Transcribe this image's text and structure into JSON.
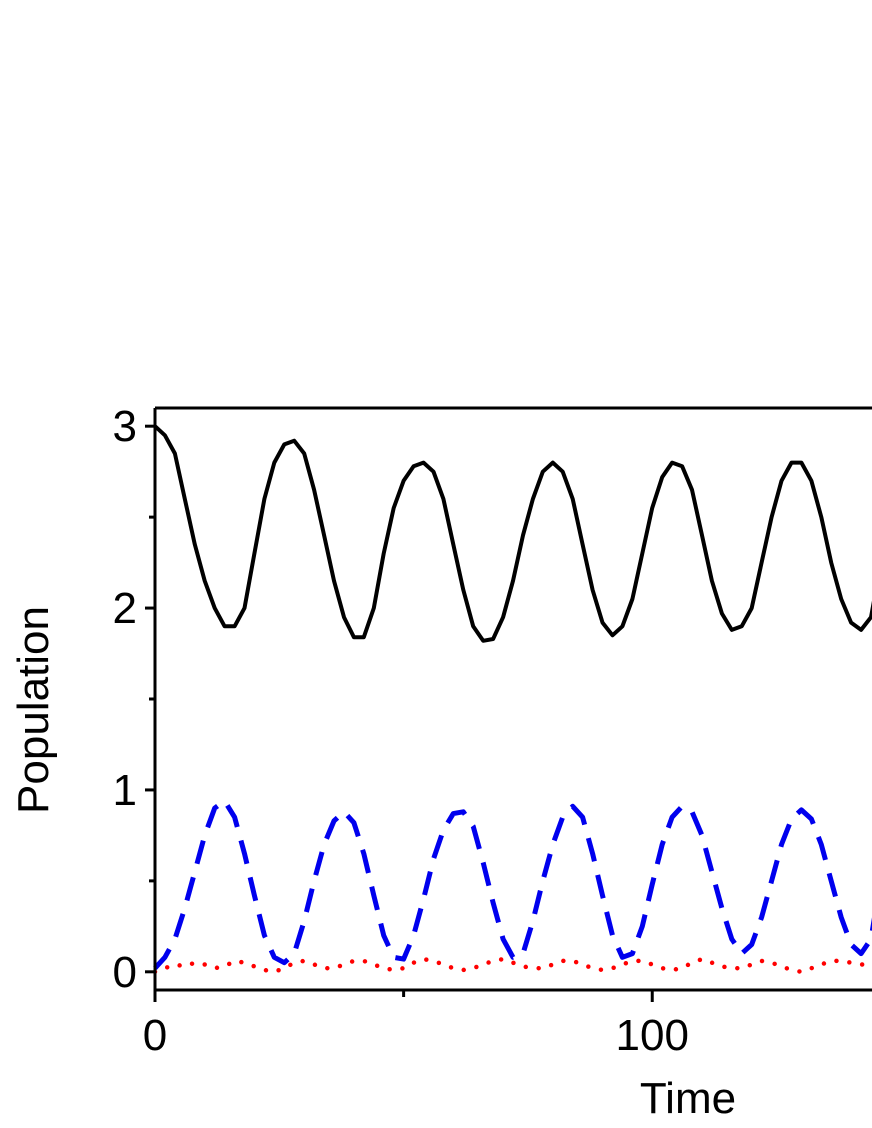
{
  "chart_data": {
    "type": "line",
    "title": "",
    "xlabel": "Time",
    "ylabel": "Population",
    "xlim": [
      0,
      145
    ],
    "ylim": [
      -0.1,
      3.1
    ],
    "x_ticks": [
      {
        "value": 0,
        "label": "0"
      },
      {
        "value": 100,
        "label": "100"
      }
    ],
    "x_minor_ticks": [
      50
    ],
    "y_ticks": [
      {
        "value": 0,
        "label": "0"
      },
      {
        "value": 1,
        "label": "1"
      },
      {
        "value": 2,
        "label": "2"
      },
      {
        "value": 3,
        "label": "3"
      }
    ],
    "y_minor_ticks": [
      0.5,
      1.5,
      2.5
    ],
    "grid": false,
    "legend": "none",
    "series": [
      {
        "line_style": "solid",
        "color": "#000000",
        "x": [
          0,
          2,
          4,
          6,
          8,
          10,
          12,
          14,
          16,
          18,
          20,
          22,
          24,
          26,
          28,
          30,
          32,
          34,
          36,
          38,
          40,
          42,
          44,
          46,
          48,
          50,
          52,
          54,
          56,
          58,
          60,
          62,
          64,
          66,
          68,
          70,
          72,
          74,
          76,
          78,
          80,
          82,
          84,
          86,
          88,
          90,
          92,
          94,
          96,
          98,
          100,
          102,
          104,
          106,
          108,
          110,
          112,
          114,
          116,
          118,
          120,
          122,
          124,
          126,
          128,
          130,
          132,
          134,
          136,
          138,
          140,
          142,
          144,
          145
        ],
        "y": [
          3.0,
          2.95,
          2.85,
          2.6,
          2.35,
          2.15,
          2.0,
          1.9,
          1.9,
          2.0,
          2.3,
          2.6,
          2.8,
          2.9,
          2.92,
          2.85,
          2.65,
          2.4,
          2.15,
          1.95,
          1.84,
          1.84,
          2.0,
          2.3,
          2.55,
          2.7,
          2.78,
          2.8,
          2.75,
          2.6,
          2.35,
          2.1,
          1.9,
          1.82,
          1.83,
          1.95,
          2.15,
          2.4,
          2.6,
          2.75,
          2.8,
          2.75,
          2.6,
          2.35,
          2.1,
          1.92,
          1.85,
          1.9,
          2.05,
          2.3,
          2.55,
          2.72,
          2.8,
          2.78,
          2.65,
          2.4,
          2.15,
          1.97,
          1.88,
          1.9,
          2.0,
          2.25,
          2.5,
          2.7,
          2.8,
          2.8,
          2.7,
          2.5,
          2.25,
          2.05,
          1.92,
          1.88,
          1.95,
          2.1
        ]
      },
      {
        "line_style": "dashed",
        "color": "#0000ee",
        "x": [
          0,
          2,
          4,
          6,
          8,
          10,
          12,
          14,
          16,
          18,
          20,
          22,
          24,
          26,
          28,
          30,
          32,
          34,
          36,
          38,
          40,
          42,
          44,
          46,
          48,
          50,
          52,
          54,
          56,
          58,
          60,
          62,
          64,
          66,
          68,
          70,
          72,
          74,
          76,
          78,
          80,
          82,
          84,
          86,
          88,
          90,
          92,
          94,
          96,
          98,
          100,
          102,
          104,
          106,
          108,
          110,
          112,
          114,
          116,
          118,
          120,
          122,
          124,
          126,
          128,
          130,
          132,
          134,
          136,
          138,
          140,
          142,
          144,
          145
        ],
        "y": [
          0.02,
          0.08,
          0.18,
          0.35,
          0.55,
          0.75,
          0.9,
          0.94,
          0.85,
          0.65,
          0.42,
          0.2,
          0.08,
          0.05,
          0.1,
          0.28,
          0.5,
          0.7,
          0.83,
          0.88,
          0.82,
          0.65,
          0.42,
          0.2,
          0.08,
          0.07,
          0.2,
          0.4,
          0.62,
          0.78,
          0.87,
          0.88,
          0.8,
          0.6,
          0.38,
          0.18,
          0.08,
          0.1,
          0.28,
          0.5,
          0.7,
          0.85,
          0.91,
          0.85,
          0.65,
          0.42,
          0.2,
          0.08,
          0.1,
          0.25,
          0.48,
          0.7,
          0.85,
          0.91,
          0.88,
          0.75,
          0.55,
          0.35,
          0.18,
          0.1,
          0.15,
          0.3,
          0.5,
          0.7,
          0.84,
          0.89,
          0.84,
          0.7,
          0.5,
          0.3,
          0.15,
          0.1,
          0.18,
          0.35
        ]
      },
      {
        "line_style": "dotted",
        "color": "#ff0000",
        "x": [
          0,
          2,
          4,
          6,
          8,
          10,
          12,
          14,
          16,
          18,
          20,
          22,
          24,
          26,
          28,
          30,
          32,
          34,
          36,
          38,
          40,
          42,
          44,
          46,
          48,
          50,
          52,
          54,
          56,
          58,
          60,
          62,
          64,
          66,
          68,
          70,
          72,
          74,
          76,
          78,
          80,
          82,
          84,
          86,
          88,
          90,
          92,
          94,
          96,
          98,
          100,
          102,
          104,
          106,
          108,
          110,
          112,
          114,
          116,
          118,
          120,
          122,
          124,
          126,
          128,
          130,
          132,
          134,
          136,
          138,
          140,
          142,
          144,
          145
        ],
        "y": [
          0.0,
          0.02,
          0.04,
          0.03,
          0.05,
          0.04,
          0.02,
          0.03,
          0.06,
          0.05,
          0.03,
          0.01,
          0.0,
          0.02,
          0.05,
          0.06,
          0.04,
          0.02,
          0.02,
          0.04,
          0.06,
          0.06,
          0.04,
          0.02,
          0.01,
          0.02,
          0.05,
          0.07,
          0.06,
          0.04,
          0.02,
          0.01,
          0.02,
          0.04,
          0.06,
          0.07,
          0.05,
          0.03,
          0.02,
          0.02,
          0.04,
          0.06,
          0.06,
          0.04,
          0.02,
          0.01,
          0.02,
          0.04,
          0.06,
          0.06,
          0.04,
          0.02,
          0.01,
          0.02,
          0.05,
          0.07,
          0.05,
          0.03,
          0.02,
          0.02,
          0.04,
          0.06,
          0.05,
          0.03,
          0.01,
          0.0,
          0.02,
          0.04,
          0.06,
          0.06,
          0.05,
          0.04,
          0.04,
          0.05
        ]
      }
    ]
  }
}
